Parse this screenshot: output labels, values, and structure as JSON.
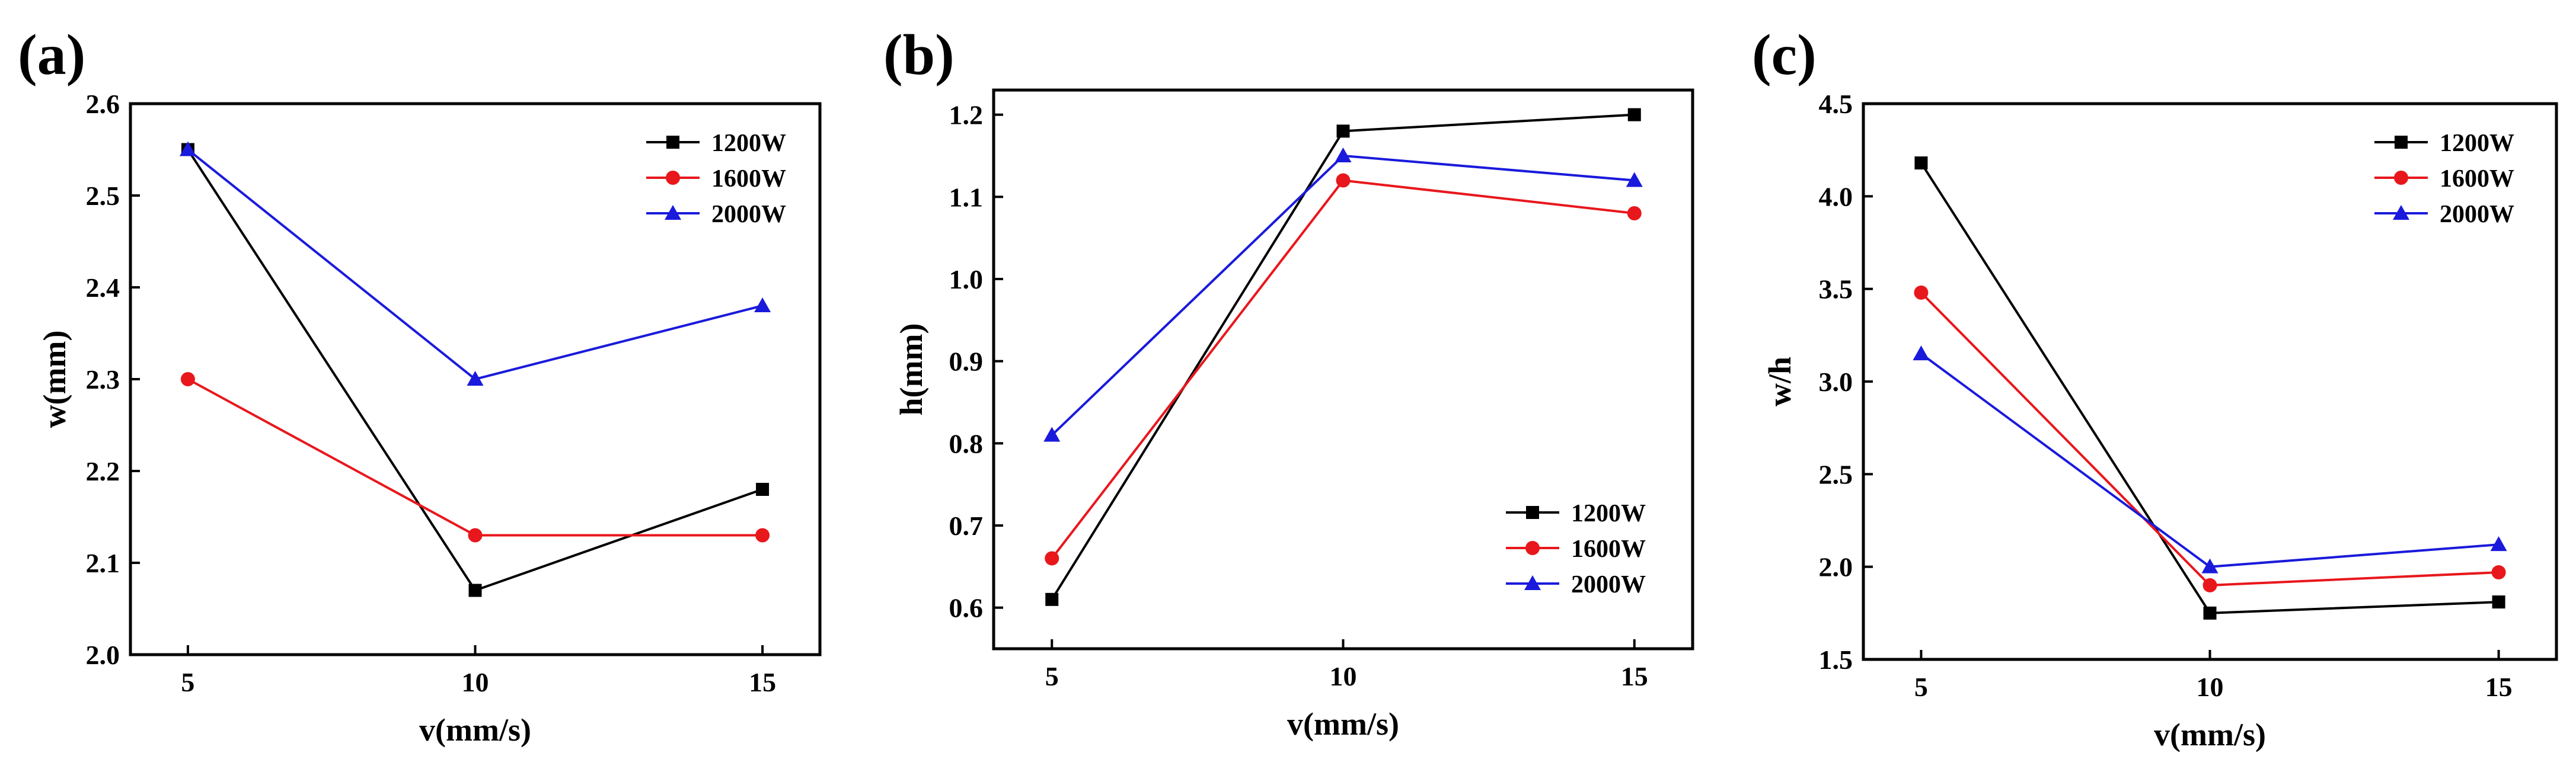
{
  "chart_data": [
    {
      "panel_label": "(a)",
      "type": "line",
      "xlabel": "v(mm/s)",
      "ylabel": "w(mm)",
      "x": [
        5,
        10,
        15
      ],
      "xticks": [
        "5",
        "10",
        "15"
      ],
      "xlim": [
        4,
        16
      ],
      "ylim": [
        2.0,
        2.6
      ],
      "yticks": [
        "2.0",
        "2.1",
        "2.2",
        "2.3",
        "2.4",
        "2.5",
        "2.6"
      ],
      "legend_position": "top-right",
      "series": [
        {
          "name": "1200W",
          "color": "#000000",
          "marker": "square",
          "values": [
            2.55,
            2.07,
            2.18
          ]
        },
        {
          "name": "1600W",
          "color": "#e8171c",
          "marker": "circle",
          "values": [
            2.3,
            2.13,
            2.13
          ]
        },
        {
          "name": "2000W",
          "color": "#1a1adc",
          "marker": "triangle",
          "values": [
            2.55,
            2.3,
            2.38
          ]
        }
      ]
    },
    {
      "panel_label": "(b)",
      "type": "line",
      "xlabel": "v(mm/s)",
      "ylabel": "h(mm)",
      "x": [
        5,
        10,
        15
      ],
      "xticks": [
        "5",
        "10",
        "15"
      ],
      "xlim": [
        4,
        16
      ],
      "ylim": [
        0.55,
        1.23
      ],
      "yticks": [
        "0.6",
        "0.7",
        "0.8",
        "0.9",
        "1.0",
        "1.1",
        "1.2"
      ],
      "legend_position": "bottom-right",
      "series": [
        {
          "name": "1200W",
          "color": "#000000",
          "marker": "square",
          "values": [
            0.61,
            1.18,
            1.2
          ]
        },
        {
          "name": "1600W",
          "color": "#e8171c",
          "marker": "circle",
          "values": [
            0.66,
            1.12,
            1.08
          ]
        },
        {
          "name": "2000W",
          "color": "#1a1adc",
          "marker": "triangle",
          "values": [
            0.81,
            1.15,
            1.12
          ]
        }
      ]
    },
    {
      "panel_label": "(c)",
      "type": "line",
      "xlabel": "v(mm/s)",
      "ylabel": "w/h",
      "x": [
        5,
        10,
        15
      ],
      "xticks": [
        "5",
        "10",
        "15"
      ],
      "xlim": [
        4,
        16
      ],
      "ylim": [
        1.5,
        4.5
      ],
      "yticks": [
        "1.5",
        "2.0",
        "2.5",
        "3.0",
        "3.5",
        "4.0",
        "4.5"
      ],
      "legend_position": "top-right",
      "series": [
        {
          "name": "1200W",
          "color": "#000000",
          "marker": "square",
          "values": [
            4.18,
            1.75,
            1.81
          ]
        },
        {
          "name": "1600W",
          "color": "#e8171c",
          "marker": "circle",
          "values": [
            3.48,
            1.9,
            1.97
          ]
        },
        {
          "name": "2000W",
          "color": "#1a1adc",
          "marker": "triangle",
          "values": [
            3.15,
            2.0,
            2.12
          ]
        }
      ]
    }
  ]
}
